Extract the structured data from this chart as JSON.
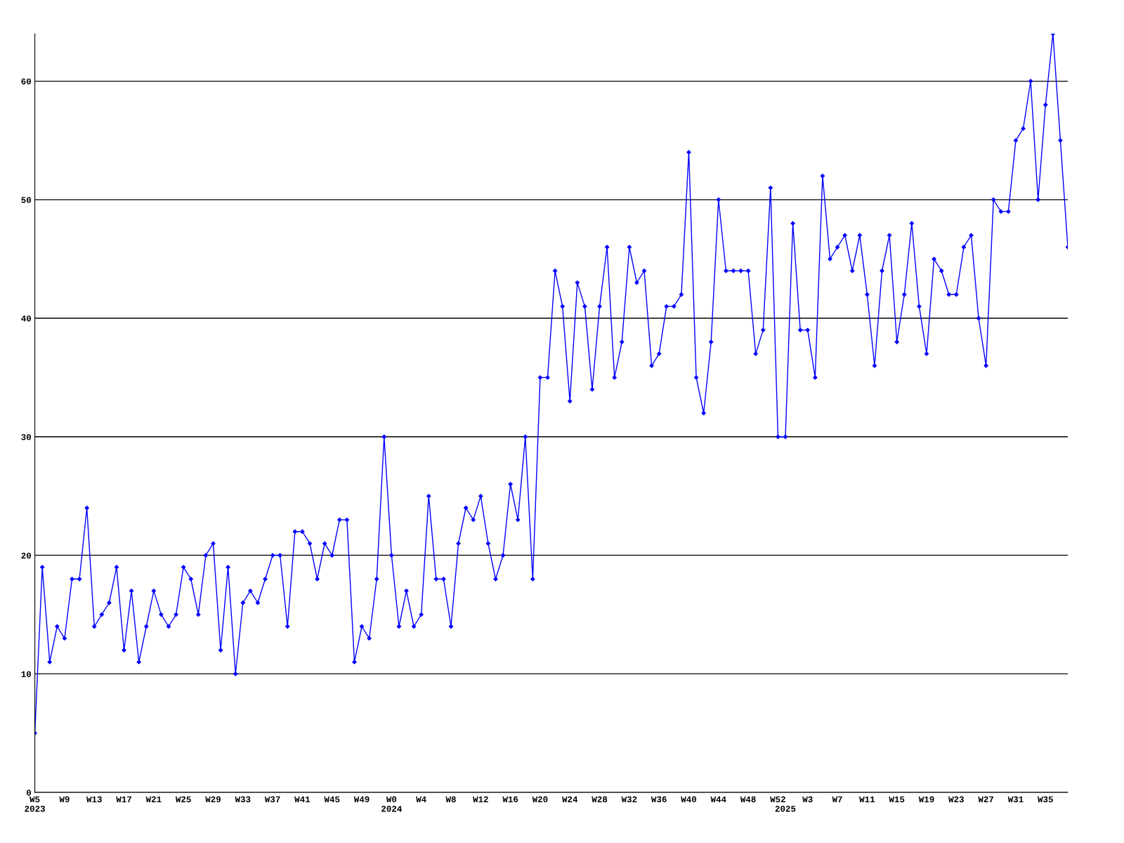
{
  "chart_data": {
    "type": "line",
    "categories": [
      "W5\n2023",
      null,
      null,
      null,
      "W9",
      null,
      null,
      null,
      "W13",
      null,
      null,
      null,
      "W17",
      null,
      null,
      null,
      "W21",
      null,
      null,
      null,
      "W25",
      null,
      null,
      null,
      "W29",
      null,
      null,
      null,
      "W33",
      null,
      null,
      null,
      "W37",
      null,
      null,
      null,
      "W41",
      null,
      null,
      null,
      "W45",
      null,
      null,
      null,
      "W49",
      null,
      null,
      null,
      "W0\n2024",
      null,
      null,
      null,
      "W4",
      null,
      null,
      null,
      "W8",
      null,
      null,
      null,
      "W12",
      null,
      null,
      null,
      "W16",
      null,
      null,
      null,
      "W20",
      null,
      null,
      null,
      "W24",
      null,
      null,
      null,
      "W28",
      null,
      null,
      null,
      "W32",
      null,
      null,
      null,
      "W36",
      null,
      null,
      null,
      "W40",
      null,
      null,
      null,
      "W44",
      null,
      null,
      null,
      "W48",
      null,
      null,
      null,
      "W52",
      "\n2025",
      null,
      null,
      "W3",
      null,
      null,
      null,
      "W7",
      null,
      null,
      null,
      "W11",
      null,
      null,
      null,
      "W15",
      null,
      null,
      null,
      "W19",
      null,
      null,
      null,
      "W23",
      null,
      null,
      null,
      "W27",
      null,
      null,
      null,
      "W31",
      null,
      null,
      null,
      "W35",
      null,
      null,
      null
    ],
    "series": [
      {
        "color": "#0000ff",
        "values": [
          5,
          19,
          11,
          14,
          13,
          18,
          18,
          24,
          14,
          15,
          16,
          19,
          12,
          17,
          11,
          14,
          17,
          15,
          14,
          15,
          19,
          18,
          15,
          20,
          21,
          12,
          19,
          10,
          16,
          17,
          16,
          18,
          20,
          20,
          14,
          22,
          22,
          21,
          18,
          21,
          20,
          23,
          23,
          11,
          14,
          13,
          18,
          30,
          20,
          14,
          17,
          14,
          15,
          25,
          18,
          18,
          14,
          21,
          24,
          23,
          25,
          21,
          18,
          20,
          26,
          23,
          30,
          18,
          35,
          35,
          44,
          41,
          33,
          43,
          41,
          34,
          41,
          46,
          35,
          38,
          46,
          43,
          44,
          36,
          37,
          41,
          41,
          42,
          54,
          35,
          32,
          38,
          50,
          44,
          44,
          44,
          44,
          37,
          39,
          51,
          30,
          30,
          48,
          39,
          39,
          35,
          52,
          45,
          46,
          47,
          44,
          47,
          42,
          36,
          44,
          47,
          38,
          42,
          48,
          41,
          37,
          45,
          44,
          42,
          42,
          46,
          47,
          40,
          36,
          50,
          49,
          49,
          55,
          56,
          60,
          50,
          58,
          64,
          55,
          46
        ]
      }
    ],
    "ylim": [
      0,
      64
    ],
    "yticks": [
      0,
      10,
      20,
      30,
      40,
      50,
      60
    ],
    "grid": "y",
    "marker": "diamond",
    "line_style": "solid",
    "legend": false
  }
}
